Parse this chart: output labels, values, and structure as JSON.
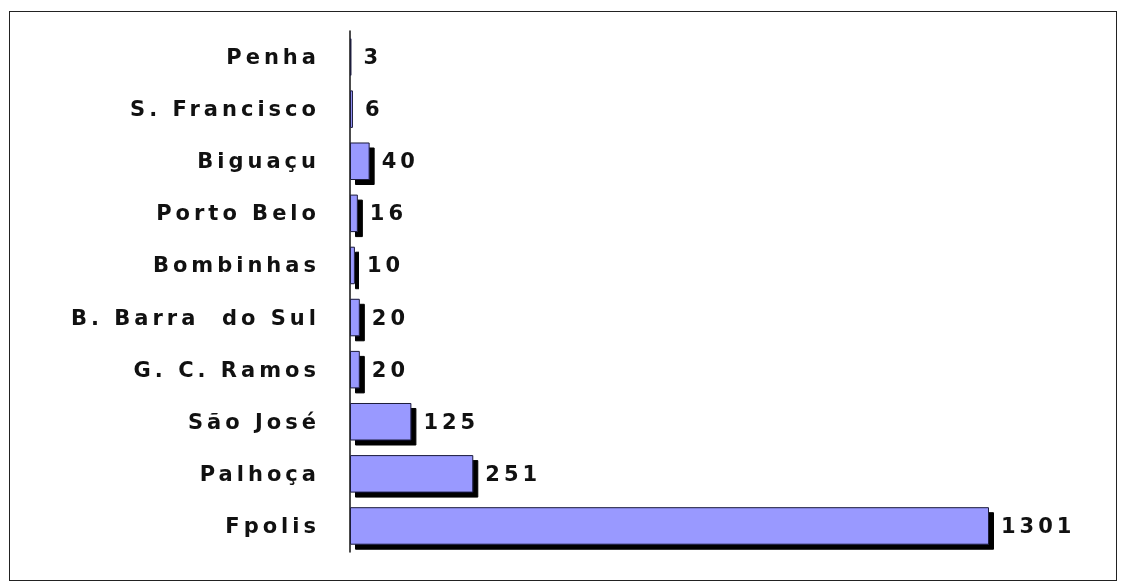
{
  "chart_data": {
    "type": "bar",
    "orientation": "horizontal",
    "categories": [
      "Penha",
      "S. Francisco",
      "Biguaçu",
      "Porto Belo",
      "Bombinhas",
      "B. Barra  do Sul",
      "G. C. Ramos",
      "São José",
      "Palhoça",
      "Fpolis"
    ],
    "values": [
      3,
      6,
      40,
      16,
      10,
      20,
      20,
      125,
      251,
      1301
    ],
    "color": "#9999ff",
    "data_labels": true,
    "tick_labels": "y"
  }
}
